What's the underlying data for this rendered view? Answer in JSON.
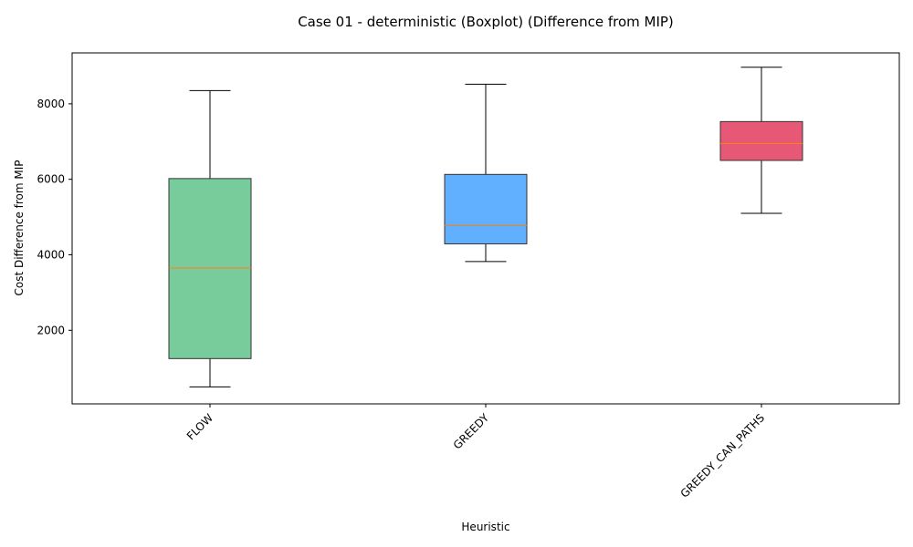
{
  "chart_data": {
    "type": "boxplot",
    "title": "Case 01 - deterministic (Boxplot) (Difference from MIP)",
    "xlabel": "Heuristic",
    "ylabel": "Cost Difference from MIP",
    "ylim": [
      50,
      9350
    ],
    "yticks": [
      2000,
      4000,
      6000,
      8000
    ],
    "grid": false,
    "legend": "none",
    "categories": [
      "FLOW",
      "GREEDY",
      "GREEDY_CAN_PATHS"
    ],
    "boxes": [
      {
        "label": "FLOW",
        "whisker_low": 500,
        "q1": 1250,
        "median": 3650,
        "q3": 6020,
        "whisker_high": 8350,
        "color": "#52BE80"
      },
      {
        "label": "GREEDY",
        "whisker_low": 3820,
        "q1": 4290,
        "median": 4780,
        "q3": 6130,
        "whisker_high": 8520,
        "color": "#3498FF"
      },
      {
        "label": "GREEDY_CAN_PATHS",
        "whisker_low": 5100,
        "q1": 6500,
        "median": 6950,
        "q3": 7530,
        "whisker_high": 8970,
        "color": "#E0284F"
      }
    ],
    "median_color": "#FF7F0E"
  }
}
